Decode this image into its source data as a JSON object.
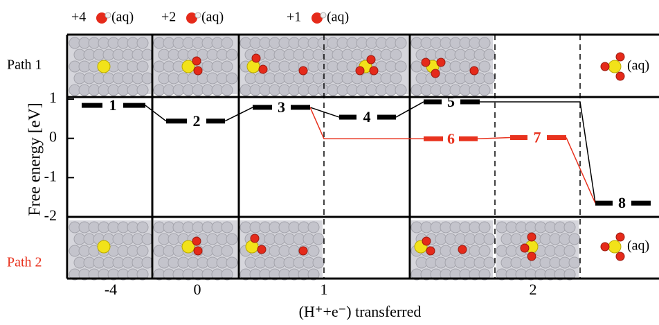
{
  "chart_data": {
    "type": "energy_levels",
    "y_label": "Free energy [eV]",
    "x_label": "(H⁺+e⁻) transferred",
    "ylim": [
      -2,
      1
    ],
    "yticks": [
      1,
      0,
      -1,
      -2
    ],
    "xticks": [
      "-4",
      "0",
      "1",
      "2"
    ],
    "top_labels": [
      {
        "charge": "+4",
        "suffix": "(aq)"
      },
      {
        "charge": "+2",
        "suffix": "(aq)"
      },
      {
        "charge": "+1",
        "suffix": "(aq)"
      }
    ],
    "panel_labels": [
      "(aq)",
      "(aq)"
    ],
    "series": [
      {
        "name": "Path 1",
        "color": "#000000"
      },
      {
        "name": "Path 2",
        "color": "#e8321e"
      }
    ],
    "levels": [
      {
        "label": "1",
        "value": 0.84,
        "color": "#000000"
      },
      {
        "label": "2",
        "value": 0.44,
        "color": "#000000"
      },
      {
        "label": "3",
        "value": 0.79,
        "color": "#000000"
      },
      {
        "label": "4",
        "value": 0.54,
        "color": "#000000"
      },
      {
        "label": "5",
        "value": 0.93,
        "color": "#000000"
      },
      {
        "label": "6",
        "value": -0.01,
        "color": "#e8321e"
      },
      {
        "label": "7",
        "value": 0.02,
        "color": "#e8321e"
      },
      {
        "label": "8",
        "value": -1.65,
        "color": "#000000"
      }
    ]
  }
}
